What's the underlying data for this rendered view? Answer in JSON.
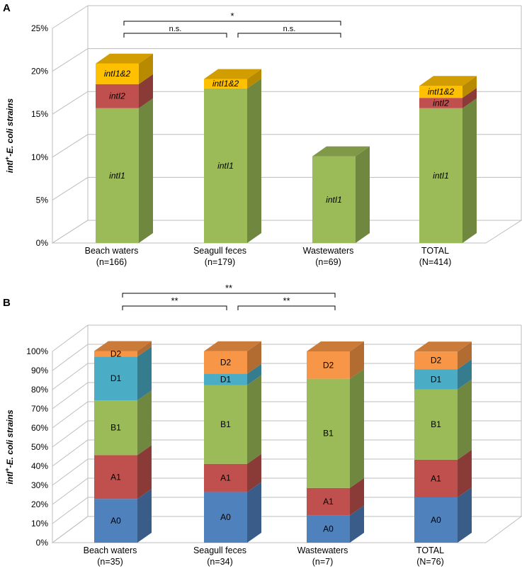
{
  "chart_data": [
    {
      "panel": "A",
      "type": "bar",
      "stacked": true,
      "y_axis_title": {
        "prefix": "intI",
        "sup": "+",
        "suffix": "-E. coli strains"
      },
      "ylim": [
        0,
        25
      ],
      "yticks": [
        "0%",
        "5%",
        "10%",
        "15%",
        "20%",
        "25%"
      ],
      "categories": [
        {
          "name": "Beach waters",
          "n": "(n=166)"
        },
        {
          "name": "Seagull feces",
          "n": "(n=179)"
        },
        {
          "name": "Wastewaters",
          "n": "(n=69)"
        },
        {
          "name": "TOTAL",
          "n": "(N=414)"
        }
      ],
      "series": [
        {
          "name": "intI1",
          "label": "intI1",
          "italic": true,
          "color": "#9BBB59",
          "values": [
            15.7,
            18.0,
            10.1,
            15.7
          ]
        },
        {
          "name": "intI2",
          "label": "intI2",
          "italic": true,
          "color": "#C0504D",
          "values": [
            2.8,
            0,
            0,
            1.2
          ]
        },
        {
          "name": "intI1&2",
          "label": "intI1&2",
          "italic": true,
          "color": "#FFC000",
          "values": [
            2.4,
            1.1,
            0,
            1.4
          ]
        }
      ],
      "significance": [
        {
          "from": 0,
          "to": 1,
          "label": "n.s.",
          "level": 0
        },
        {
          "from": 1,
          "to": 2,
          "label": "n.s.",
          "level": 0
        },
        {
          "from": 0,
          "to": 2,
          "label": "*",
          "level": 1
        }
      ]
    },
    {
      "panel": "B",
      "type": "bar",
      "stacked": true,
      "y_axis_title": {
        "prefix": "intI",
        "sup": "+",
        "suffix": "-E. coli strains"
      },
      "ylim": [
        0,
        100
      ],
      "yticks": [
        "0%",
        "10%",
        "20%",
        "30%",
        "40%",
        "50%",
        "60%",
        "70%",
        "80%",
        "90%",
        "100%"
      ],
      "categories": [
        {
          "name": "Beach waters",
          "n": "(n=35)"
        },
        {
          "name": "Seagull feces",
          "n": "(n=34)"
        },
        {
          "name": "Wastewaters",
          "n": "(n=7)"
        },
        {
          "name": "TOTAL",
          "n": "(N=76)"
        }
      ],
      "series": [
        {
          "name": "A0",
          "label": "A0",
          "italic": false,
          "color": "#4F81BD",
          "values": [
            22.9,
            26.5,
            14.3,
            23.7
          ]
        },
        {
          "name": "A1",
          "label": "A1",
          "italic": false,
          "color": "#C0504D",
          "values": [
            22.9,
            14.7,
            14.3,
            19.7
          ]
        },
        {
          "name": "B1",
          "label": "B1",
          "italic": false,
          "color": "#9BBB59",
          "values": [
            28.6,
            41.2,
            57.1,
            36.8
          ]
        },
        {
          "name": "D1",
          "label": "D1",
          "italic": false,
          "color": "#4BACC6",
          "values": [
            22.9,
            5.9,
            0,
            10.5
          ]
        },
        {
          "name": "D2",
          "label": "D2",
          "italic": false,
          "color": "#F79646",
          "values": [
            2.9,
            11.8,
            14.3,
            9.2
          ]
        }
      ],
      "significance": [
        {
          "from": 0,
          "to": 1,
          "label": "**",
          "level": 0
        },
        {
          "from": 1,
          "to": 2,
          "label": "**",
          "level": 0
        },
        {
          "from": 0,
          "to": 2,
          "label": "**",
          "level": 1
        }
      ]
    }
  ]
}
